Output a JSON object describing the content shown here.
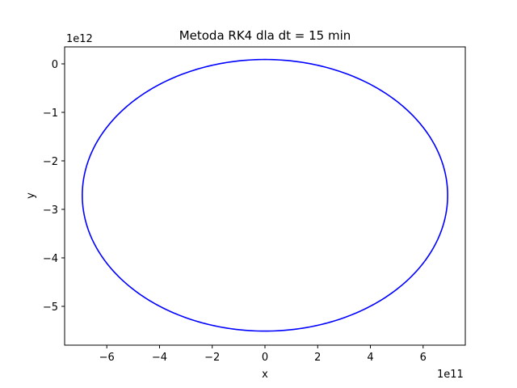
{
  "chart_data": {
    "type": "line",
    "title": "Metoda RK4 dla dt = 15 min",
    "xlabel": "x",
    "ylabel": "y",
    "x_offset_label": "1e11",
    "y_offset_label": "1e12",
    "xlim": [
      -7.6,
      7.6
    ],
    "ylim": [
      -5.8,
      0.35
    ],
    "xticks": [
      -6,
      -4,
      -2,
      0,
      2,
      4,
      6
    ],
    "yticks": [
      0,
      -1,
      -2,
      -3,
      -4,
      -5
    ],
    "xtick_labels": [
      "−6",
      "−4",
      "−2",
      "0",
      "2",
      "4",
      "6"
    ],
    "ytick_labels": [
      "0",
      "−1",
      "−2",
      "−3",
      "−4",
      "−5"
    ],
    "grid": false,
    "series": [
      {
        "color": "#0000ff",
        "shape": "ellipse",
        "center": [
          0,
          -2.71
        ],
        "semi_axis_x": 6.93,
        "semi_axis_y": 2.8
      }
    ]
  }
}
